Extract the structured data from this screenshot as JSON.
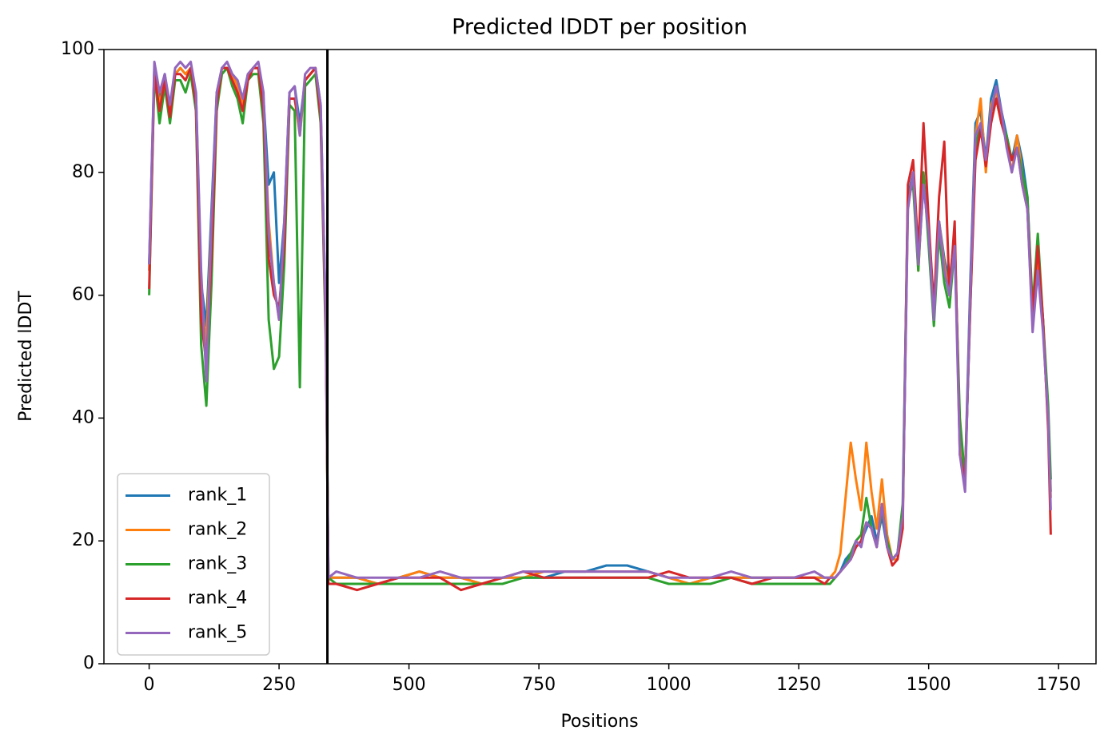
{
  "chart_data": {
    "type": "line",
    "title": "Predicted lDDT per position",
    "xlabel": "Positions",
    "ylabel": "Predicted lDDT",
    "x": [
      0,
      10,
      20,
      30,
      40,
      50,
      60,
      70,
      80,
      90,
      100,
      110,
      120,
      130,
      140,
      150,
      160,
      170,
      180,
      190,
      200,
      210,
      220,
      230,
      240,
      250,
      260,
      270,
      280,
      290,
      300,
      310,
      320,
      330,
      340,
      345,
      360,
      400,
      440,
      480,
      520,
      560,
      600,
      640,
      680,
      720,
      760,
      800,
      840,
      880,
      920,
      960,
      1000,
      1040,
      1080,
      1120,
      1160,
      1200,
      1240,
      1280,
      1300,
      1310,
      1320,
      1330,
      1340,
      1350,
      1360,
      1370,
      1380,
      1390,
      1400,
      1410,
      1420,
      1430,
      1440,
      1450,
      1460,
      1470,
      1480,
      1490,
      1500,
      1510,
      1520,
      1530,
      1540,
      1550,
      1560,
      1570,
      1580,
      1590,
      1600,
      1610,
      1620,
      1630,
      1640,
      1650,
      1660,
      1670,
      1680,
      1690,
      1700,
      1710,
      1720,
      1730,
      1735
    ],
    "series": [
      {
        "name": "rank_1",
        "color": "#1f77b4",
        "values": [
          65,
          97,
          92,
          96,
          90,
          96,
          97,
          96,
          97,
          93,
          62,
          55,
          74,
          93,
          97,
          97,
          96,
          95,
          92,
          96,
          97,
          97,
          92,
          78,
          80,
          62,
          72,
          93,
          94,
          88,
          95,
          96,
          97,
          91,
          56,
          14,
          14,
          14,
          13,
          14,
          15,
          14,
          14,
          13,
          14,
          14,
          14,
          15,
          15,
          16,
          16,
          15,
          14,
          13,
          14,
          14,
          14,
          14,
          14,
          14,
          14,
          14,
          14,
          15,
          17,
          18,
          19,
          20,
          22,
          24,
          20,
          24,
          19,
          17,
          18,
          24,
          76,
          80,
          66,
          78,
          71,
          58,
          72,
          66,
          62,
          70,
          37,
          30,
          62,
          88,
          90,
          82,
          92,
          95,
          90,
          86,
          82,
          86,
          82,
          76,
          56,
          66,
          56,
          40,
          28
        ]
      },
      {
        "name": "rank_2",
        "color": "#ff7f0e",
        "values": [
          64,
          97,
          91,
          95,
          90,
          96,
          97,
          96,
          97,
          92,
          60,
          52,
          72,
          92,
          97,
          97,
          96,
          94,
          91,
          96,
          97,
          97,
          91,
          72,
          62,
          56,
          70,
          92,
          92,
          86,
          95,
          96,
          97,
          90,
          55,
          14,
          14,
          14,
          13,
          14,
          15,
          14,
          14,
          13,
          14,
          14,
          15,
          15,
          15,
          15,
          15,
          15,
          14,
          13,
          14,
          14,
          14,
          14,
          14,
          14,
          14,
          14,
          15,
          18,
          27,
          36,
          30,
          25,
          36,
          28,
          22,
          30,
          21,
          17,
          17,
          24,
          74,
          80,
          64,
          79,
          70,
          56,
          72,
          65,
          60,
          70,
          36,
          29,
          60,
          86,
          92,
          80,
          91,
          93,
          89,
          85,
          80,
          86,
          80,
          74,
          55,
          65,
          55,
          39,
          27
        ]
      },
      {
        "name": "rank_3",
        "color": "#2ca02c",
        "values": [
          60,
          96,
          88,
          94,
          88,
          95,
          95,
          93,
          96,
          90,
          52,
          42,
          62,
          90,
          96,
          97,
          94,
          92,
          88,
          95,
          96,
          96,
          88,
          56,
          48,
          50,
          65,
          91,
          90,
          45,
          94,
          95,
          96,
          88,
          52,
          14,
          13,
          13,
          13,
          13,
          13,
          13,
          13,
          13,
          13,
          14,
          14,
          14,
          14,
          14,
          14,
          14,
          13,
          13,
          13,
          14,
          13,
          13,
          13,
          13,
          13,
          13,
          14,
          15,
          16,
          18,
          20,
          21,
          27,
          22,
          19,
          25,
          20,
          17,
          18,
          26,
          76,
          78,
          64,
          80,
          68,
          55,
          70,
          62,
          58,
          68,
          40,
          30,
          58,
          84,
          88,
          82,
          90,
          92,
          88,
          86,
          82,
          84,
          80,
          76,
          58,
          70,
          56,
          42,
          30
        ]
      },
      {
        "name": "rank_4",
        "color": "#d62728",
        "values": [
          61,
          96,
          90,
          95,
          89,
          96,
          96,
          95,
          97,
          91,
          56,
          49,
          66,
          91,
          97,
          97,
          95,
          93,
          90,
          95,
          97,
          97,
          90,
          66,
          60,
          58,
          68,
          92,
          92,
          87,
          95,
          96,
          97,
          89,
          54,
          13,
          13,
          12,
          13,
          14,
          14,
          14,
          12,
          13,
          14,
          15,
          14,
          14,
          14,
          14,
          14,
          14,
          15,
          14,
          14,
          14,
          13,
          14,
          14,
          14,
          13,
          14,
          14,
          15,
          16,
          17,
          19,
          20,
          23,
          22,
          19,
          26,
          19,
          16,
          17,
          22,
          78,
          82,
          67,
          88,
          72,
          58,
          76,
          85,
          60,
          72,
          34,
          30,
          58,
          82,
          87,
          81,
          88,
          92,
          88,
          85,
          82,
          84,
          78,
          74,
          57,
          68,
          56,
          38,
          21
        ]
      },
      {
        "name": "rank_5",
        "color": "#9467bd",
        "values": [
          65,
          98,
          93,
          96,
          91,
          97,
          98,
          97,
          98,
          93,
          64,
          46,
          72,
          93,
          97,
          98,
          96,
          95,
          92,
          96,
          97,
          98,
          93,
          70,
          62,
          56,
          72,
          93,
          94,
          86,
          96,
          97,
          97,
          91,
          56,
          14,
          15,
          14,
          14,
          14,
          14,
          15,
          14,
          14,
          14,
          15,
          15,
          15,
          15,
          15,
          15,
          15,
          14,
          14,
          14,
          15,
          14,
          14,
          14,
          15,
          14,
          14,
          14,
          15,
          16,
          17,
          20,
          19,
          23,
          22,
          19,
          26,
          19,
          17,
          18,
          24,
          74,
          80,
          65,
          78,
          70,
          56,
          72,
          64,
          60,
          68,
          34,
          28,
          60,
          86,
          88,
          82,
          90,
          94,
          90,
          84,
          80,
          84,
          78,
          74,
          54,
          64,
          54,
          40,
          25
        ]
      }
    ],
    "vlines": [
      343
    ],
    "xlim": [
      -87,
      1822
    ],
    "xticks": [
      0,
      250,
      500,
      750,
      1000,
      1250,
      1500,
      1750
    ],
    "ylim": [
      0,
      100
    ],
    "yticks": [
      0,
      20,
      40,
      60,
      80,
      100
    ],
    "legend": "lower left"
  }
}
